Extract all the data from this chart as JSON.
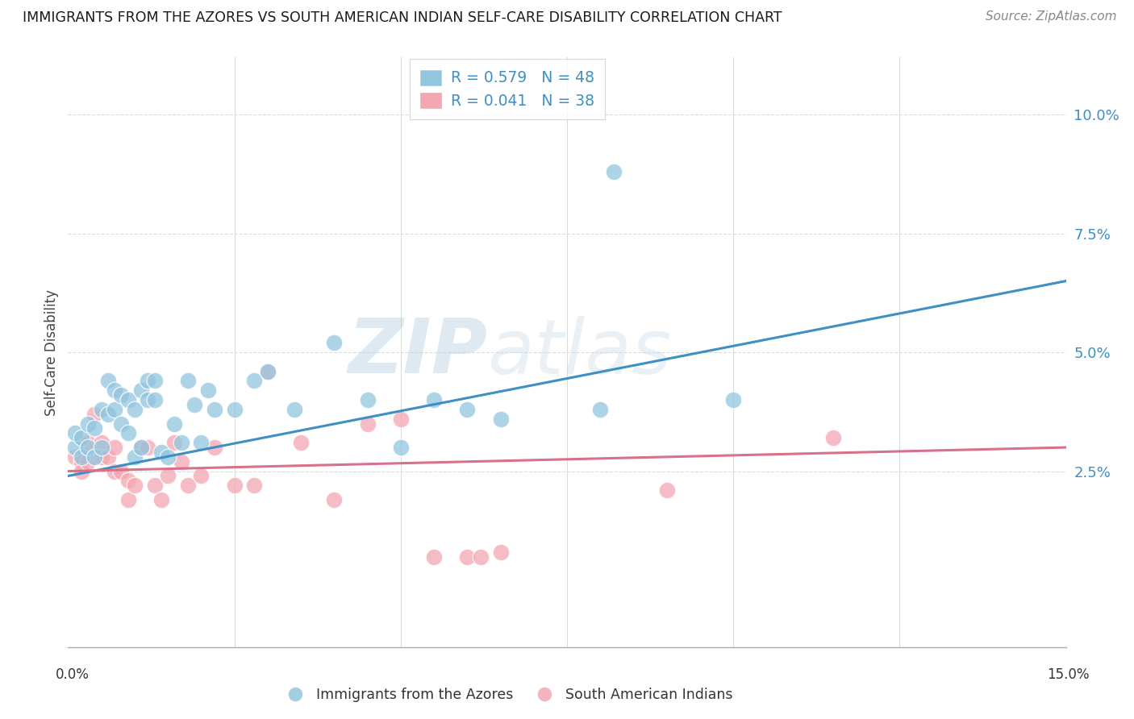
{
  "title": "IMMIGRANTS FROM THE AZORES VS SOUTH AMERICAN INDIAN SELF-CARE DISABILITY CORRELATION CHART",
  "source": "Source: ZipAtlas.com",
  "ylabel": "Self-Care Disability",
  "right_yticks": [
    "2.5%",
    "5.0%",
    "7.5%",
    "10.0%"
  ],
  "right_ytick_vals": [
    0.025,
    0.05,
    0.075,
    0.1
  ],
  "xlim": [
    0.0,
    0.15
  ],
  "ylim": [
    -0.012,
    0.112
  ],
  "legend_r1_text": "R = 0.579",
  "legend_r1_n": "N = 48",
  "legend_r2_text": "R = 0.041",
  "legend_r2_n": "N = 38",
  "blue_color": "#92c5de",
  "pink_color": "#f4a6b2",
  "blue_line_color": "#3d8fc4",
  "pink_line_color": "#d9708a",
  "blue_scatter": [
    [
      0.001,
      0.03
    ],
    [
      0.001,
      0.033
    ],
    [
      0.002,
      0.032
    ],
    [
      0.002,
      0.028
    ],
    [
      0.003,
      0.035
    ],
    [
      0.003,
      0.03
    ],
    [
      0.004,
      0.034
    ],
    [
      0.004,
      0.028
    ],
    [
      0.005,
      0.038
    ],
    [
      0.005,
      0.03
    ],
    [
      0.006,
      0.044
    ],
    [
      0.006,
      0.037
    ],
    [
      0.007,
      0.042
    ],
    [
      0.007,
      0.038
    ],
    [
      0.008,
      0.041
    ],
    [
      0.008,
      0.035
    ],
    [
      0.009,
      0.04
    ],
    [
      0.009,
      0.033
    ],
    [
      0.01,
      0.038
    ],
    [
      0.01,
      0.028
    ],
    [
      0.011,
      0.042
    ],
    [
      0.011,
      0.03
    ],
    [
      0.012,
      0.044
    ],
    [
      0.012,
      0.04
    ],
    [
      0.013,
      0.044
    ],
    [
      0.013,
      0.04
    ],
    [
      0.014,
      0.029
    ],
    [
      0.015,
      0.028
    ],
    [
      0.016,
      0.035
    ],
    [
      0.017,
      0.031
    ],
    [
      0.018,
      0.044
    ],
    [
      0.019,
      0.039
    ],
    [
      0.02,
      0.031
    ],
    [
      0.021,
      0.042
    ],
    [
      0.022,
      0.038
    ],
    [
      0.025,
      0.038
    ],
    [
      0.028,
      0.044
    ],
    [
      0.03,
      0.046
    ],
    [
      0.034,
      0.038
    ],
    [
      0.04,
      0.052
    ],
    [
      0.045,
      0.04
    ],
    [
      0.05,
      0.03
    ],
    [
      0.055,
      0.04
    ],
    [
      0.06,
      0.038
    ],
    [
      0.065,
      0.036
    ],
    [
      0.08,
      0.038
    ],
    [
      0.1,
      0.04
    ],
    [
      0.082,
      0.088
    ]
  ],
  "pink_scatter": [
    [
      0.001,
      0.028
    ],
    [
      0.002,
      0.027
    ],
    [
      0.002,
      0.025
    ],
    [
      0.003,
      0.031
    ],
    [
      0.003,
      0.027
    ],
    [
      0.004,
      0.037
    ],
    [
      0.005,
      0.031
    ],
    [
      0.005,
      0.028
    ],
    [
      0.006,
      0.028
    ],
    [
      0.007,
      0.03
    ],
    [
      0.007,
      0.025
    ],
    [
      0.008,
      0.025
    ],
    [
      0.009,
      0.023
    ],
    [
      0.009,
      0.019
    ],
    [
      0.01,
      0.022
    ],
    [
      0.011,
      0.03
    ],
    [
      0.012,
      0.03
    ],
    [
      0.013,
      0.022
    ],
    [
      0.014,
      0.019
    ],
    [
      0.015,
      0.024
    ],
    [
      0.016,
      0.031
    ],
    [
      0.017,
      0.027
    ],
    [
      0.018,
      0.022
    ],
    [
      0.02,
      0.024
    ],
    [
      0.022,
      0.03
    ],
    [
      0.025,
      0.022
    ],
    [
      0.028,
      0.022
    ],
    [
      0.03,
      0.046
    ],
    [
      0.035,
      0.031
    ],
    [
      0.04,
      0.019
    ],
    [
      0.045,
      0.035
    ],
    [
      0.05,
      0.036
    ],
    [
      0.055,
      0.007
    ],
    [
      0.06,
      0.007
    ],
    [
      0.062,
      0.007
    ],
    [
      0.065,
      0.008
    ],
    [
      0.09,
      0.021
    ],
    [
      0.115,
      0.032
    ]
  ],
  "blue_line": [
    [
      0.0,
      0.024
    ],
    [
      0.15,
      0.065
    ]
  ],
  "pink_line": [
    [
      0.0,
      0.025
    ],
    [
      0.15,
      0.03
    ]
  ],
  "watermark_zip": "ZIP",
  "watermark_atlas": "atlas",
  "background_color": "#ffffff",
  "grid_color": "#d4dde4",
  "legend_label1": "Immigrants from the Azores",
  "legend_label2": "South American Indians"
}
